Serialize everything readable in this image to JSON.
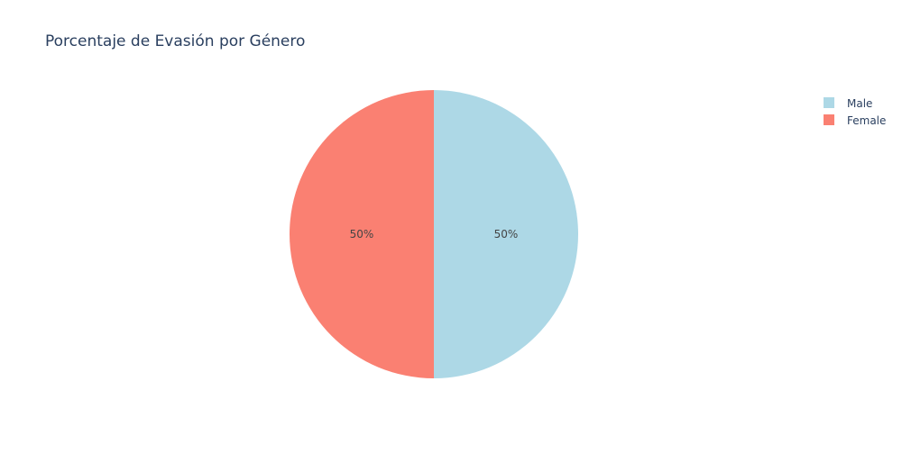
{
  "chart_data": {
    "type": "pie",
    "title": "Porcentaje de Evasión por Género",
    "slices": [
      {
        "label": "Male",
        "value": 50,
        "percent_label": "50%",
        "color": "#add8e6"
      },
      {
        "label": "Female",
        "value": 50,
        "percent_label": "50%",
        "color": "#fa8072"
      }
    ],
    "legend_position": "top-right",
    "direction": "clockwise",
    "start": "top"
  },
  "colors": {
    "title": "#2a3f5f",
    "text": "#2a3f5f",
    "label": "#444444",
    "background": "#ffffff"
  }
}
